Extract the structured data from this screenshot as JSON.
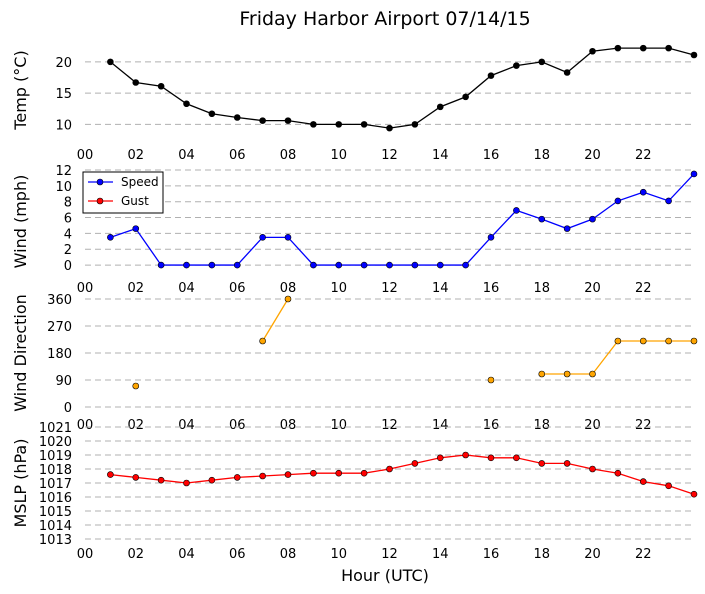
{
  "title": "Friday Harbor Airport 07/14/15",
  "xlabel": "Hour (UTC)",
  "x_tick_labels": [
    "00",
    "02",
    "04",
    "06",
    "08",
    "10",
    "12",
    "14",
    "16",
    "18",
    "20",
    "22"
  ],
  "colors": {
    "temp": "#000000",
    "speed": "#0000ff",
    "gust": "#ff0000",
    "direction": "#ffa500",
    "grid": "#b0b0b0"
  },
  "chart_data": [
    {
      "type": "line",
      "ylabel": "Temp ($^\\circ$C)",
      "ylabel_display": "Temp (°C)",
      "ylim": [
        7.5,
        23.5
      ],
      "yticks": [
        10,
        15,
        20
      ],
      "grid": "horizontal dashed",
      "x": [
        1,
        2,
        3,
        4,
        5,
        6,
        7,
        8,
        9,
        10,
        11,
        12,
        13,
        14,
        15,
        16,
        17,
        18,
        19,
        20,
        21,
        22,
        23,
        24
      ],
      "series": [
        {
          "color": "#000000",
          "values": [
            20.0,
            16.7,
            16.1,
            13.3,
            11.7,
            11.1,
            10.6,
            10.6,
            10.0,
            10.0,
            10.0,
            9.4,
            10.0,
            12.8,
            14.4,
            17.8,
            19.4,
            20.0,
            18.3,
            21.7,
            22.2,
            22.2,
            22.2,
            21.1
          ]
        }
      ]
    },
    {
      "type": "line",
      "ylabel": "Wind (mph)",
      "ylim": [
        -1,
        12
      ],
      "yticks": [
        0,
        2,
        4,
        6,
        8,
        10,
        12
      ],
      "grid": "horizontal dashed",
      "legend_placement": "top-left",
      "x": [
        1,
        2,
        3,
        4,
        5,
        6,
        7,
        8,
        9,
        10,
        11,
        12,
        13,
        14,
        15,
        16,
        17,
        18,
        19,
        20,
        21,
        22,
        23,
        24
      ],
      "series": [
        {
          "name": "Speed",
          "color": "#0000ff",
          "values": [
            3.5,
            4.6,
            0,
            0,
            0,
            0,
            3.5,
            3.5,
            0,
            0,
            0,
            0,
            0,
            0,
            0,
            3.5,
            6.9,
            5.8,
            4.6,
            5.8,
            8.1,
            9.2,
            8.1,
            11.5
          ]
        },
        {
          "name": "Gust",
          "color": "#ff0000",
          "values": [
            null,
            null,
            null,
            null,
            null,
            null,
            null,
            null,
            null,
            null,
            null,
            null,
            null,
            null,
            null,
            null,
            null,
            null,
            null,
            null,
            null,
            null,
            null,
            null
          ]
        }
      ]
    },
    {
      "type": "line",
      "ylabel": "Wind Direction",
      "ylim": [
        -10,
        370
      ],
      "yticks": [
        0,
        90,
        180,
        270,
        360
      ],
      "grid": "horizontal dashed",
      "x": [
        1,
        2,
        3,
        4,
        5,
        6,
        7,
        8,
        9,
        10,
        11,
        12,
        13,
        14,
        15,
        16,
        17,
        18,
        19,
        20,
        21,
        22,
        23,
        24
      ],
      "series": [
        {
          "color": "#ffa500",
          "values": [
            null,
            70,
            null,
            null,
            null,
            null,
            220,
            360,
            null,
            null,
            null,
            null,
            null,
            null,
            null,
            90,
            null,
            110,
            110,
            110,
            220,
            220,
            220,
            220
          ]
        }
      ]
    },
    {
      "type": "line",
      "ylabel": "MSLP (hPa)",
      "ylim": [
        1013,
        1021
      ],
      "yticks": [
        1013,
        1014,
        1015,
        1016,
        1017,
        1018,
        1019,
        1020,
        1021
      ],
      "grid": "horizontal dashed",
      "x": [
        1,
        2,
        3,
        4,
        5,
        6,
        7,
        8,
        9,
        10,
        11,
        12,
        13,
        14,
        15,
        16,
        17,
        18,
        19,
        20,
        21,
        22,
        23,
        24
      ],
      "series": [
        {
          "color": "#ff0000",
          "values": [
            1017.6,
            1017.4,
            1017.2,
            1017.0,
            1017.2,
            1017.4,
            1017.5,
            1017.6,
            1017.7,
            1017.7,
            1017.7,
            1018.0,
            1018.4,
            1018.8,
            1019.0,
            1018.8,
            1018.8,
            1018.4,
            1018.4,
            1018.0,
            1017.7,
            1017.1,
            1016.8,
            1016.2
          ]
        }
      ]
    }
  ]
}
